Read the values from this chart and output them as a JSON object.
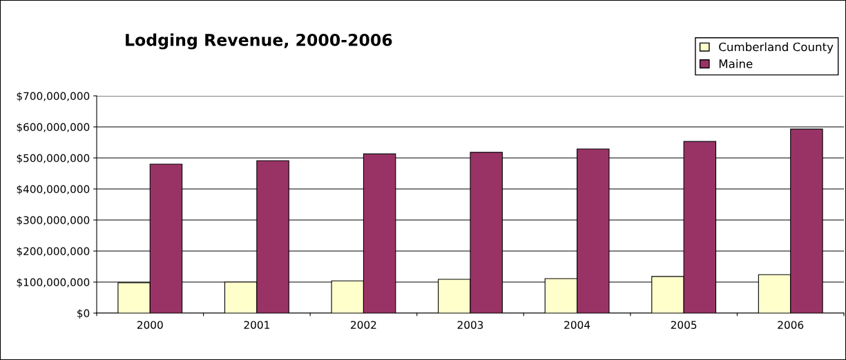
{
  "chart_data": {
    "type": "bar",
    "title": "Lodging Revenue, 2000-2006",
    "categories": [
      "2000",
      "2001",
      "2002",
      "2003",
      "2004",
      "2005",
      "2006"
    ],
    "series": [
      {
        "name": "Cumberland County",
        "color": "#ffffcc",
        "values": [
          98000000,
          100000000,
          104000000,
          109000000,
          111000000,
          118000000,
          124000000
        ]
      },
      {
        "name": "Maine",
        "color": "#993366",
        "values": [
          480000000,
          491000000,
          513000000,
          518000000,
          529000000,
          553000000,
          593000000
        ]
      }
    ],
    "ylim": [
      0,
      700000000
    ],
    "yticks": [
      {
        "value": 0,
        "label": "$0"
      },
      {
        "value": 100000000,
        "label": "$100,000,000"
      },
      {
        "value": 200000000,
        "label": "$200,000,000"
      },
      {
        "value": 300000000,
        "label": "$300,000,000"
      },
      {
        "value": 400000000,
        "label": "$400,000,000"
      },
      {
        "value": 500000000,
        "label": "$500,000,000"
      },
      {
        "value": 600000000,
        "label": "$600,000,000"
      },
      {
        "value": 700000000,
        "label": "$700,000,000"
      }
    ],
    "grid": "y",
    "legend": "top right"
  }
}
